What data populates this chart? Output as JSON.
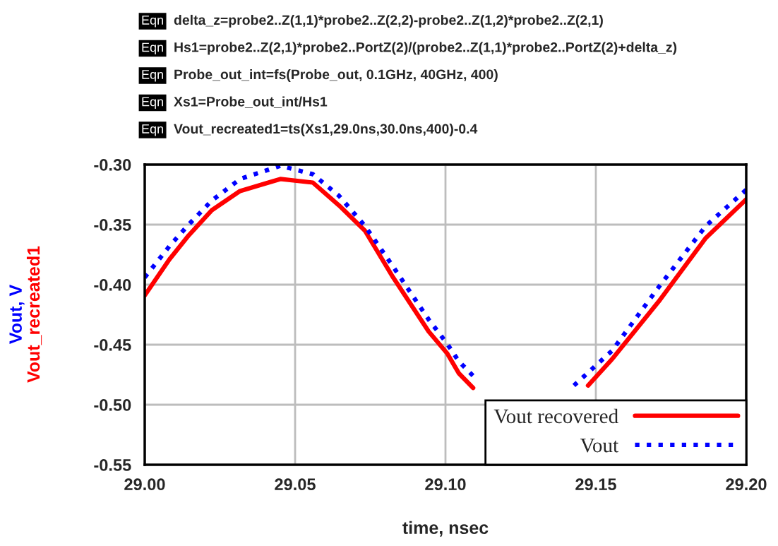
{
  "chart_data": {
    "type": "line",
    "annotations": [
      "Eqn delta_z=probe2..Z(1,1)*probe2..Z(2,2)-probe2..Z(1,2)*probe2..Z(2,1)",
      "Eqn Hs1=probe2..Z(2,1)*probe2..PortZ(2)/(probe2..Z(1,1)*probe2..PortZ(2)+delta_z)",
      "Eqn Probe_out_int=fs(Probe_out, 0.1GHz, 40GHz, 400)",
      "Eqn Xs1=Probe_out_int/Hs1",
      "Eqn Vout_recreated1=ts(Xs1,29.0ns,30.0ns,400)-0.4"
    ],
    "xlabel": "time, nsec",
    "ylabel": "Vout, V\nVout_recreated1",
    "xlim": [
      29.0,
      29.2
    ],
    "ylim": [
      -0.55,
      -0.3
    ],
    "xticks": [
      {
        "value": 29.0,
        "label": "29.00"
      },
      {
        "value": 29.05,
        "label": "29.05"
      },
      {
        "value": 29.1,
        "label": "29.10"
      },
      {
        "value": 29.15,
        "label": "29.15"
      },
      {
        "value": 29.2,
        "label": "29.20"
      }
    ],
    "yticks": [
      {
        "value": -0.55,
        "label": "-0.55"
      },
      {
        "value": -0.5,
        "label": "-0.50"
      },
      {
        "value": -0.45,
        "label": "-0.45"
      },
      {
        "value": -0.4,
        "label": "-0.40"
      },
      {
        "value": -0.35,
        "label": "-0.35"
      },
      {
        "value": -0.3,
        "label": "-0.30"
      }
    ],
    "grid": true,
    "legend": "bottom right",
    "series": [
      {
        "name": "Vout recovered",
        "color": "#ff0000",
        "line_style": "solid",
        "x": [
          29.0,
          29.0082,
          29.0146,
          29.0223,
          29.0317,
          29.0451,
          29.0559,
          29.0646,
          29.0732,
          29.0826,
          29.0944,
          29.1005,
          29.1045,
          29.1092,
          29.125,
          29.1474,
          29.1554,
          29.1709,
          29.1866,
          29.2
        ],
        "values": [
          -0.409,
          -0.379,
          -0.359,
          -0.338,
          -0.322,
          -0.312,
          -0.315,
          -0.334,
          -0.355,
          -0.394,
          -0.439,
          -0.457,
          -0.474,
          -0.486,
          null,
          -0.484,
          -0.462,
          -0.414,
          -0.361,
          -0.329
        ]
      },
      {
        "name": "Vout",
        "color": "#0000ff",
        "line_style": "dotted",
        "x": [
          29.0,
          29.0082,
          29.0146,
          29.0223,
          29.0317,
          29.0451,
          29.0559,
          29.0646,
          29.0732,
          29.0826,
          29.0944,
          29.1005,
          29.1045,
          29.1092,
          29.125,
          29.1427,
          29.1554,
          29.1709,
          29.1866,
          29.2
        ],
        "values": [
          -0.394,
          -0.368,
          -0.35,
          -0.33,
          -0.312,
          -0.301,
          -0.308,
          -0.326,
          -0.351,
          -0.385,
          -0.429,
          -0.449,
          -0.464,
          -0.476,
          null,
          -0.484,
          -0.455,
          -0.402,
          -0.351,
          -0.321
        ]
      }
    ]
  }
}
